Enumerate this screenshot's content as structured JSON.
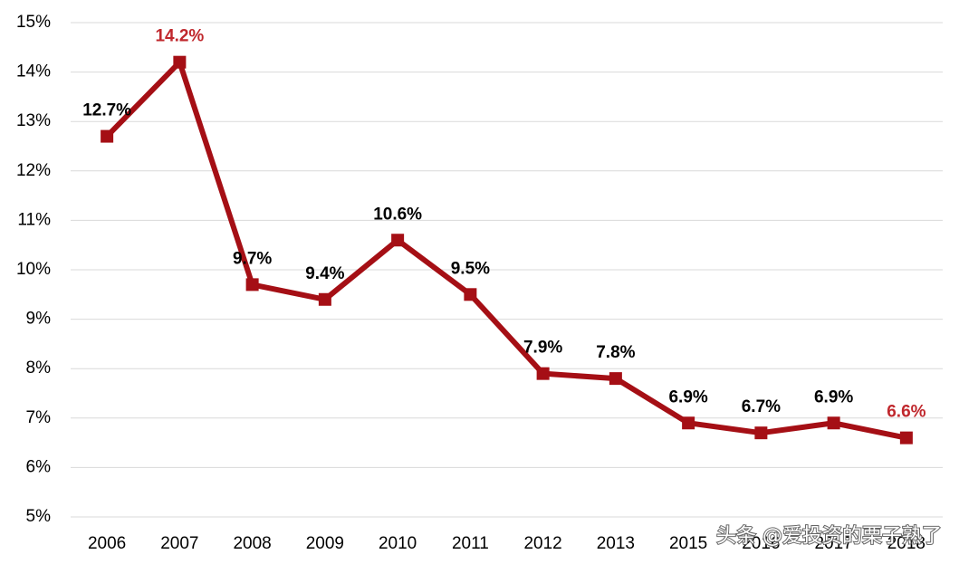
{
  "chart_data": {
    "type": "line",
    "categories": [
      "2006",
      "2007",
      "2008",
      "2009",
      "2010",
      "2011",
      "2012",
      "2013",
      "2015",
      "2016",
      "2017",
      "2018"
    ],
    "series": [
      {
        "color": "#a50f15",
        "values": [
          12.7,
          14.2,
          9.7,
          9.4,
          10.6,
          9.5,
          7.9,
          7.8,
          6.9,
          6.7,
          6.9,
          6.6
        ],
        "value_labels": [
          "12.7%",
          "14.2%",
          "9.7%",
          "9.4%",
          "10.6%",
          "9.5%",
          "7.9%",
          "7.8%",
          "6.9%",
          "6.7%",
          "6.9%",
          "6.6%"
        ],
        "value_label_colors": [
          "#000000",
          "#c0282d",
          "#000000",
          "#000000",
          "#000000",
          "#000000",
          "#000000",
          "#000000",
          "#000000",
          "#000000",
          "#000000",
          "#c0282d"
        ]
      }
    ],
    "ylim": [
      5,
      15
    ],
    "yticks": [
      {
        "value": 5,
        "label": "5%"
      },
      {
        "value": 6,
        "label": "6%"
      },
      {
        "value": 7,
        "label": "7%"
      },
      {
        "value": 8,
        "label": "8%"
      },
      {
        "value": 9,
        "label": "9%"
      },
      {
        "value": 10,
        "label": "10%"
      },
      {
        "value": 11,
        "label": "11%"
      },
      {
        "value": 12,
        "label": "12%"
      },
      {
        "value": 13,
        "label": "13%"
      },
      {
        "value": 14,
        "label": "14%"
      },
      {
        "value": 15,
        "label": "15%"
      }
    ],
    "grid": true,
    "watermark": "头条 @爱投资的栗子熟了"
  }
}
